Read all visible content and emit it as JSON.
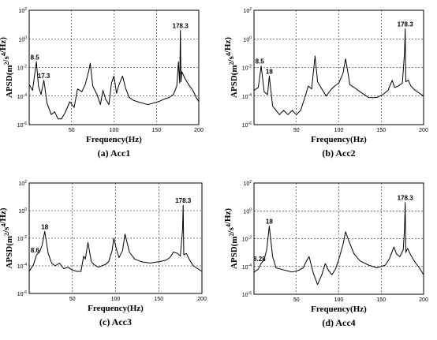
{
  "chart_data": [
    {
      "type": "line",
      "title": "(a) Acc1",
      "xlabel": "Frequency(Hz)",
      "ylabel": "APSD(m2/s4/Hz)",
      "xlim": [
        0,
        200
      ],
      "ylim": [
        -6,
        2
      ],
      "y_scale": "log",
      "grid": true,
      "x_ticks": [
        "50",
        "100",
        "150",
        "200"
      ],
      "y_ticks": [
        "10^2",
        "10^0",
        "10^-2",
        "10^-4",
        "10^-6"
      ],
      "annotations": [
        {
          "text": "8.5",
          "x": 8.5,
          "y": -1.6
        },
        {
          "text": "17.3",
          "x": 17.3,
          "y": -2.9
        },
        {
          "text": "178.3",
          "x": 178.3,
          "y": 0.6
        }
      ],
      "x": [
        0,
        4,
        8.5,
        11,
        14,
        17.3,
        21,
        26,
        30,
        34,
        38,
        42,
        48,
        53,
        57,
        62,
        66,
        70,
        72,
        75,
        80,
        84,
        87,
        90,
        94,
        97,
        100,
        103,
        106,
        110,
        114,
        118,
        123,
        128,
        134,
        140,
        146,
        152,
        156,
        160,
        165,
        170,
        174,
        176,
        177.5,
        178.3,
        179,
        180,
        184,
        188,
        193,
        197,
        200
      ],
      "y": [
        -3.2,
        -3.6,
        -1.6,
        -3.3,
        -3.9,
        -2.9,
        -4.5,
        -5.3,
        -5.1,
        -5.6,
        -5.6,
        -5.2,
        -4.4,
        -4.8,
        -3.5,
        -3.7,
        -3.2,
        -2.3,
        -1.7,
        -3.3,
        -3.9,
        -4.6,
        -3.6,
        -4.2,
        -4.6,
        -3.1,
        -2.6,
        -3.8,
        -3.2,
        -2.6,
        -3.5,
        -4.1,
        -4.3,
        -4.4,
        -4.5,
        -4.6,
        -4.5,
        -4.4,
        -4.3,
        -4.2,
        -4.1,
        -3.9,
        -3.3,
        -1.6,
        -3.1,
        0.6,
        -3.0,
        -2.3,
        -2.8,
        -3.2,
        -3.6,
        -4.1,
        -4.4
      ]
    },
    {
      "type": "line",
      "title": "(b) Acc2",
      "xlabel": "Frequency(Hz)",
      "ylabel": "APSD(m2/s4/Hz)",
      "xlim": [
        0,
        200
      ],
      "ylim": [
        -6,
        2
      ],
      "y_scale": "log",
      "grid": true,
      "x_ticks": [
        "50",
        "100",
        "150",
        "200"
      ],
      "y_ticks": [
        "10^2",
        "10^0",
        "10^-2",
        "10^-4",
        "10^-6"
      ],
      "annotations": [
        {
          "text": "8.5",
          "x": 8.5,
          "y": -1.9
        },
        {
          "text": "18",
          "x": 18,
          "y": -2.6
        },
        {
          "text": "178.3",
          "x": 178.3,
          "y": 0.7
        }
      ],
      "x": [
        0,
        5,
        8.5,
        12,
        16,
        18,
        22,
        26,
        30,
        35,
        40,
        45,
        50,
        55,
        60,
        64,
        68,
        72,
        75,
        80,
        85,
        90,
        95,
        100,
        105,
        108,
        110,
        113,
        118,
        125,
        135,
        145,
        152,
        158,
        163,
        166,
        170,
        175,
        177.5,
        178.3,
        179,
        182,
        185,
        190,
        195,
        200
      ],
      "y": [
        -3.6,
        -3.4,
        -1.9,
        -3.7,
        -3.9,
        -2.6,
        -4.7,
        -5.0,
        -5.3,
        -5.0,
        -5.3,
        -5.0,
        -5.3,
        -5.0,
        -4.1,
        -3.3,
        -3.5,
        -1.2,
        -3.0,
        -3.5,
        -4.0,
        -3.6,
        -3.3,
        -3.1,
        -2.4,
        -1.4,
        -2.1,
        -3.2,
        -3.4,
        -3.7,
        -4.1,
        -4.1,
        -3.9,
        -3.6,
        -2.9,
        -3.4,
        -3.3,
        -3.1,
        -1.0,
        0.7,
        -3.0,
        -2.9,
        -3.3,
        -3.6,
        -3.8,
        -4.0
      ]
    },
    {
      "type": "line",
      "title": "(c) Acc3",
      "xlabel": "Frequency(Hz)",
      "ylabel": "APSD(m2/s4/Hz)",
      "xlim": [
        0,
        200
      ],
      "ylim": [
        -6,
        2
      ],
      "y_scale": "log",
      "grid": true,
      "x_ticks": [
        "50",
        "100",
        "150",
        "200"
      ],
      "y_ticks": [
        "10^2",
        "10^0",
        "10^-2",
        "10^-4",
        "10^-6"
      ],
      "annotations": [
        {
          "text": "8.6",
          "x": 8.6,
          "y": -3.2
        },
        {
          "text": "18",
          "x": 18,
          "y": -1.5
        },
        {
          "text": "178.3",
          "x": 178.3,
          "y": 0.4
        }
      ],
      "x": [
        0,
        5,
        8.6,
        12,
        15,
        18,
        22,
        26,
        30,
        35,
        40,
        45,
        50,
        55,
        60,
        63,
        65,
        68,
        72,
        75,
        80,
        84,
        88,
        92,
        96,
        98,
        101,
        104,
        108,
        111,
        116,
        122,
        130,
        140,
        150,
        158,
        163,
        167,
        172,
        175,
        177.5,
        178.3,
        179,
        182,
        186,
        190,
        195,
        200
      ],
      "y": [
        -4.4,
        -3.9,
        -3.2,
        -3.0,
        -2.5,
        -1.5,
        -3.1,
        -3.8,
        -4.0,
        -3.8,
        -4.2,
        -4.1,
        -4.3,
        -4.4,
        -4.4,
        -3.3,
        -3.5,
        -2.3,
        -3.7,
        -3.9,
        -4.1,
        -4.0,
        -3.9,
        -3.7,
        -2.9,
        -2.0,
        -2.8,
        -3.4,
        -2.9,
        -1.7,
        -3.0,
        -3.5,
        -3.7,
        -3.8,
        -3.7,
        -3.6,
        -3.4,
        -3.0,
        -3.1,
        -3.3,
        -1.4,
        0.4,
        -3.2,
        -3.1,
        -3.6,
        -4.0,
        -4.2,
        -4.4
      ]
    },
    {
      "type": "line",
      "title": "(d) Acc4",
      "xlabel": "Frequency(Hz)",
      "ylabel": "APSD(m2/s4/Hz)",
      "xlim": [
        0,
        200
      ],
      "ylim": [
        -6,
        2
      ],
      "y_scale": "log",
      "grid": true,
      "x_ticks": [
        "50",
        "100",
        "150",
        "200"
      ],
      "y_ticks": [
        "10^2",
        "10^0",
        "10^-2",
        "10^-4",
        "10^-6"
      ],
      "annotations": [
        {
          "text": "8.28",
          "x": 8.28,
          "y": -3.8
        },
        {
          "text": "18",
          "x": 18,
          "y": -1.1
        },
        {
          "text": "178.3",
          "x": 178.3,
          "y": 0.6
        }
      ],
      "x": [
        0,
        5,
        8.28,
        12,
        15,
        18,
        22,
        26,
        32,
        38,
        45,
        52,
        58,
        62,
        65,
        70,
        75,
        80,
        84,
        88,
        92,
        96,
        100,
        105,
        108,
        112,
        118,
        125,
        135,
        145,
        155,
        160,
        165,
        168,
        172,
        176,
        177.5,
        178.3,
        179,
        181,
        185,
        190,
        195,
        200
      ],
      "y": [
        -4.4,
        -4.2,
        -3.8,
        -3.5,
        -2.8,
        -1.1,
        -3.3,
        -4.1,
        -4.2,
        -4.3,
        -4.4,
        -4.3,
        -4.1,
        -3.6,
        -3.3,
        -4.5,
        -5.3,
        -4.6,
        -3.8,
        -4.3,
        -4.6,
        -4.2,
        -3.5,
        -2.4,
        -1.5,
        -2.2,
        -3.1,
        -3.6,
        -3.9,
        -4.1,
        -3.9,
        -3.4,
        -2.6,
        -3.1,
        -3.3,
        -2.8,
        -1.3,
        0.6,
        -3.0,
        -2.7,
        -3.2,
        -3.7,
        -4.1,
        -4.6
      ]
    }
  ]
}
